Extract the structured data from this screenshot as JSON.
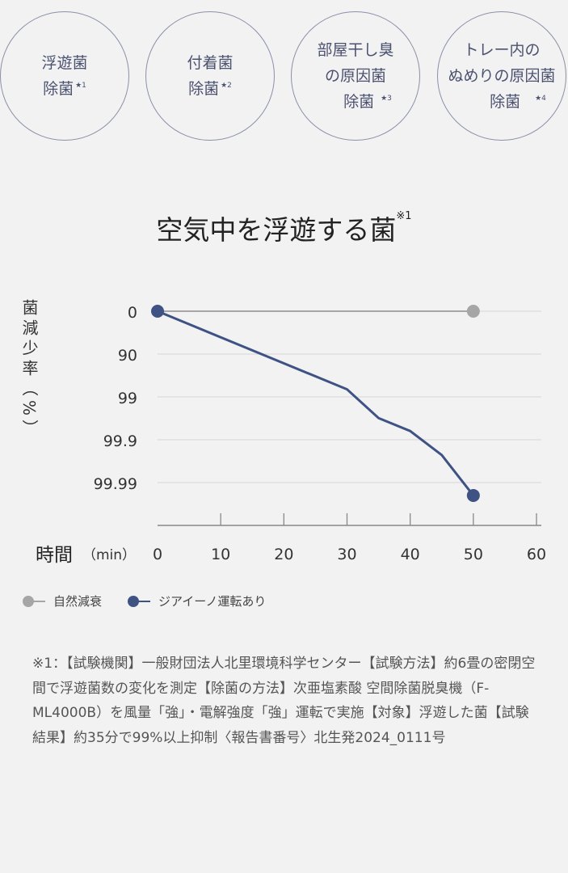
{
  "badges": [
    {
      "lines": [
        "浮遊菌",
        "除菌"
      ],
      "mark": "★1"
    },
    {
      "lines": [
        "付着菌",
        "除菌"
      ],
      "mark": "★2"
    },
    {
      "lines": [
        "部屋干し臭",
        "の原因菌",
        "除菌"
      ],
      "mark": "★3"
    },
    {
      "lines": [
        "トレー内の",
        "ぬめりの原因菌",
        "除菌"
      ],
      "mark": "★4"
    }
  ],
  "title": {
    "text": "空気中を浮遊する菌",
    "mark": "※1"
  },
  "chart_data": {
    "type": "line",
    "title": "空気中を浮遊する菌※1",
    "ylabel": "菌減少率（%）",
    "xlabel": "時間",
    "xunit": "（min）",
    "x_ticks": [
      0,
      10,
      20,
      30,
      40,
      50,
      60
    ],
    "xlim": [
      0,
      60
    ],
    "y_scale": "log reduction",
    "y_ticks": [
      "0",
      "90",
      "99",
      "99.9",
      "99.99"
    ],
    "grid": true,
    "legend_position": "bottom-left",
    "series": [
      {
        "name": "自然減衰",
        "color": "#a6a6a6",
        "x": [
          0,
          50
        ],
        "y": [
          0,
          0
        ]
      },
      {
        "name": "ジアイーノ運転あり",
        "color": "#3f5284",
        "x": [
          0,
          30,
          35,
          40,
          45,
          50
        ],
        "y": [
          0,
          98.5,
          99.68,
          99.84,
          99.956,
          99.995
        ]
      }
    ]
  },
  "footnote": "※1：【試験機関】一般財団法人北里環境科学センター【試験方法】約6畳の密閉空間で浮遊菌数の変化を測定【除菌の方法】次亜塩素酸 空間除菌脱臭機（F-ML4000B）を風量「強」・電解強度「強」運転で実施【対象】浮遊した菌【試験結果】約35分で99%以上抑制〈報告書番号〉北生発2024_0111号"
}
